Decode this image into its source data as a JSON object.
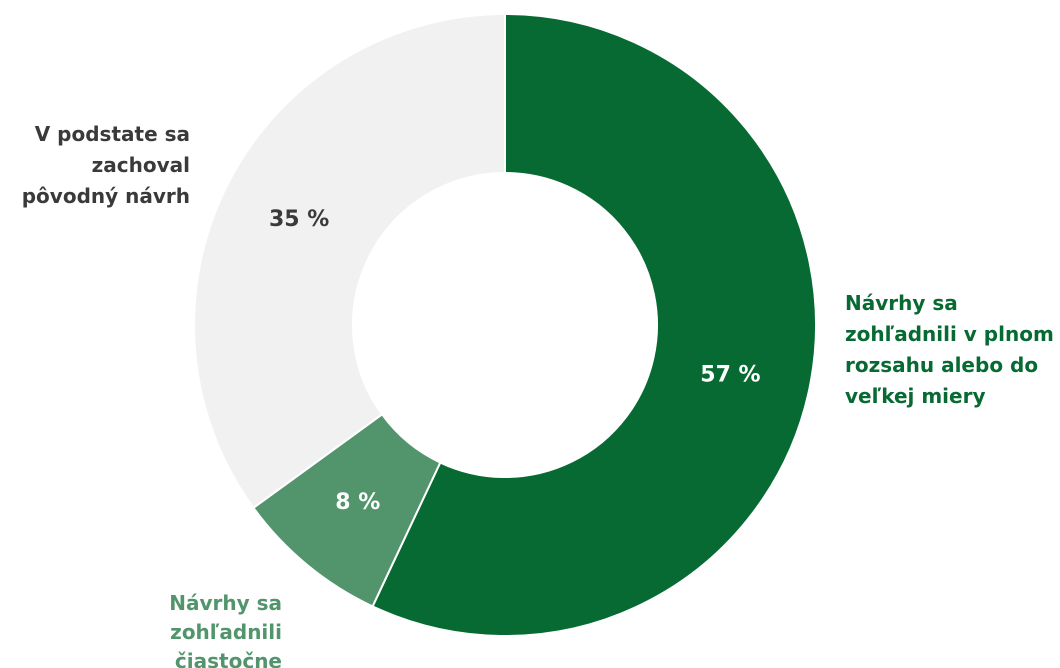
{
  "chart_data": {
    "type": "pie",
    "variant": "donut",
    "title": "",
    "slices": [
      {
        "name": "Návrhy sa zohľadnili v plnom rozsahu alebo do veľkej miery",
        "label_lines": [
          "Návrhy sa",
          "zohľadnili v plnom",
          "rozsahu alebo do",
          "veľkej miery"
        ],
        "value": 57,
        "value_label": "57 %",
        "color": "#076a33",
        "label_color": "#076a33",
        "value_color": "#ffffff"
      },
      {
        "name": "Návrhy sa zohľadnili čiastočne",
        "label_lines": [
          "Návrhy sa",
          "zohľadnili",
          "čiastočne"
        ],
        "value": 8,
        "value_label": "8 %",
        "color": "#52956d",
        "label_color": "#52956d",
        "value_color": "#ffffff"
      },
      {
        "name": "V podstate sa zachoval pôvodný návrh",
        "label_lines": [
          "V podstate sa",
          "zachoval",
          "pôvodný návrh"
        ],
        "value": 35,
        "value_label": "35 %",
        "color": "#f1f1f1",
        "label_color": "#3a3a3a",
        "value_color": "#3a3a3a"
      }
    ],
    "legend": "none",
    "start_angle": "12 o'clock",
    "direction": "clockwise"
  }
}
